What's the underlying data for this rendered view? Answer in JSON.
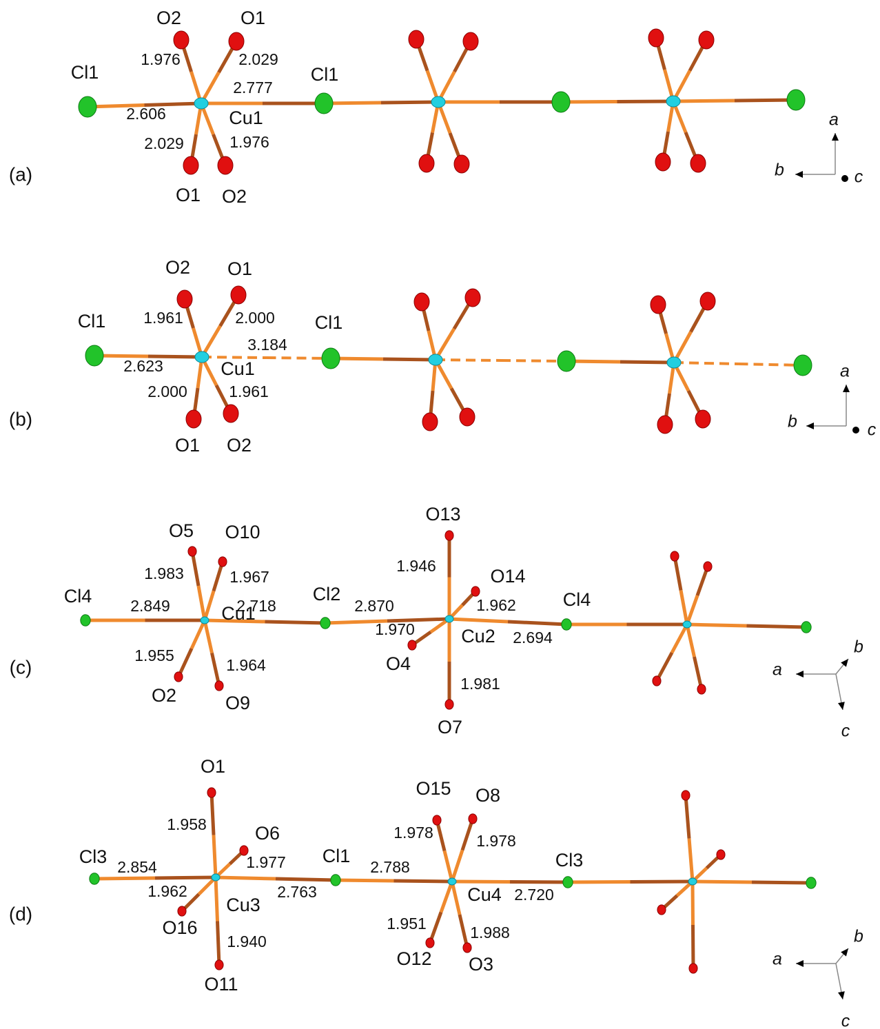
{
  "panels": [
    {
      "label": "(a)",
      "atoms": [
        "O2",
        "O1",
        "Cl1",
        "Cl1",
        "Cu1",
        "O1",
        "O2"
      ],
      "bond_lengths": [
        "1.976",
        "2.029",
        "2.777",
        "2.606",
        "2.029",
        "1.976"
      ],
      "axes": [
        "a",
        "b",
        "c"
      ]
    },
    {
      "label": "(b)",
      "atoms": [
        "O2",
        "O1",
        "Cl1",
        "Cl1",
        "Cu1",
        "O1",
        "O2"
      ],
      "bond_lengths": [
        "1.961",
        "2.000",
        "3.184",
        "2.623",
        "2.000",
        "1.961"
      ],
      "axes": [
        "a",
        "b",
        "c"
      ]
    },
    {
      "label": "(c)",
      "atoms": [
        "O5",
        "O10",
        "O13",
        "O14",
        "Cl4",
        "Cl2",
        "Cl4",
        "Cu1",
        "Cu2",
        "O4",
        "O2",
        "O9",
        "O7"
      ],
      "bond_lengths": [
        "1.983",
        "1.967",
        "1.946",
        "2.849",
        "2.718",
        "2.870",
        "1.962",
        "1.970",
        "2.694",
        "1.955",
        "1.964",
        "1.981"
      ],
      "axes": [
        "a",
        "b",
        "c"
      ]
    },
    {
      "label": "(d)",
      "atoms": [
        "O1",
        "O6",
        "O15",
        "O8",
        "Cl3",
        "Cl1",
        "Cl3",
        "Cu3",
        "Cu4",
        "O16",
        "O12",
        "O3",
        "O11"
      ],
      "bond_lengths": [
        "1.958",
        "1.977",
        "1.978",
        "1.978",
        "2.854",
        "2.788",
        "1.962",
        "2.763",
        "2.720",
        "1.951",
        "1.988",
        "1.940"
      ],
      "axes": [
        "a",
        "b",
        "c"
      ]
    }
  ]
}
